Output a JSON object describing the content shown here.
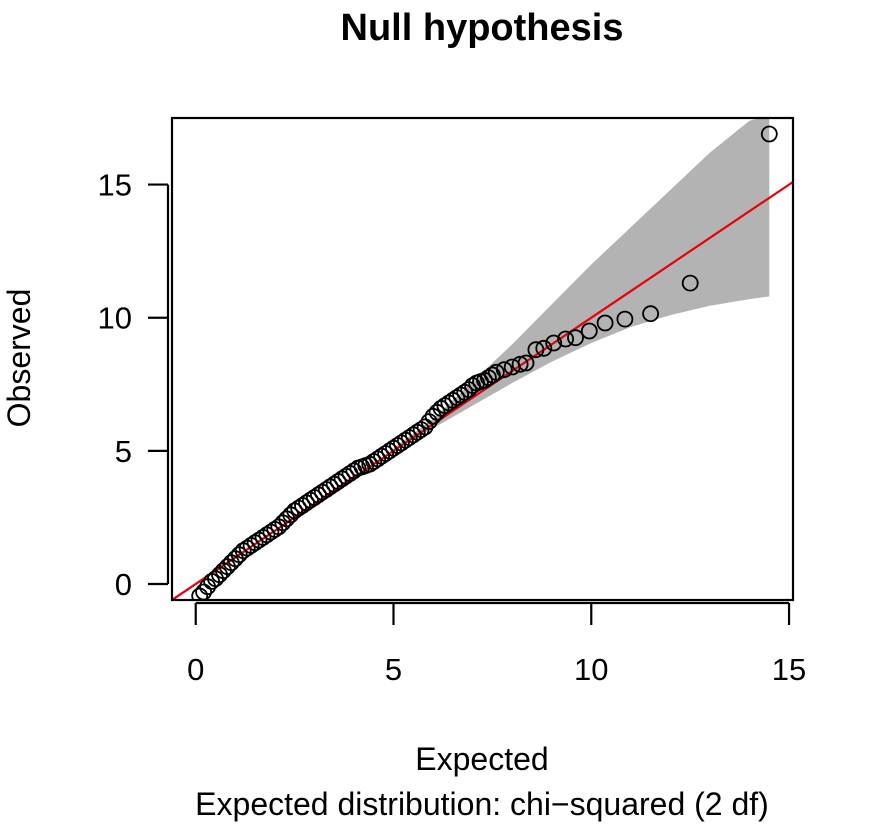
{
  "chart_data": {
    "type": "scatter",
    "title": "Null hypothesis",
    "xlabel": "Expected",
    "ylabel": "Observed",
    "subtitle": "Expected distribution: chi−squared (2 df)",
    "xlim": [
      -0.6,
      15.1
    ],
    "ylim": [
      -0.6,
      17.5
    ],
    "x_ticks": [
      0,
      5,
      10,
      15
    ],
    "y_ticks": [
      0,
      5,
      10,
      15
    ],
    "grid": false,
    "legend": "none",
    "reference_line": {
      "intercept": 0,
      "slope": 1,
      "color": "#e8000b"
    },
    "confidence_band": {
      "color": "#b3b3b3",
      "x": [
        5.0,
        6.0,
        7.0,
        8.0,
        9.0,
        10.0,
        11.0,
        12.0,
        13.0,
        14.0,
        14.5
      ],
      "lower": [
        5.0,
        5.85,
        6.7,
        7.55,
        8.35,
        9.05,
        9.65,
        10.1,
        10.45,
        10.7,
        10.8
      ],
      "upper": [
        5.1,
        6.2,
        7.6,
        9.0,
        10.5,
        12.0,
        13.4,
        14.8,
        16.2,
        17.4,
        17.6
      ]
    },
    "points_x": [
      0.1,
      0.2,
      0.3,
      0.4,
      0.5,
      0.6,
      0.7,
      0.8,
      0.9,
      1.0,
      1.1,
      1.2,
      1.3,
      1.4,
      1.5,
      1.6,
      1.7,
      1.8,
      1.9,
      2.0,
      2.1,
      2.2,
      2.3,
      2.4,
      2.5,
      2.6,
      2.7,
      2.8,
      2.9,
      3.0,
      3.1,
      3.2,
      3.3,
      3.4,
      3.5,
      3.6,
      3.7,
      3.8,
      3.9,
      4.0,
      4.1,
      4.2,
      4.3,
      4.4,
      4.5,
      4.6,
      4.7,
      4.8,
      4.9,
      5.0,
      5.1,
      5.2,
      5.3,
      5.4,
      5.5,
      5.6,
      5.7,
      5.8,
      5.9,
      6.0,
      6.1,
      6.2,
      6.3,
      6.4,
      6.5,
      6.6,
      6.7,
      6.8,
      6.9,
      7.0,
      7.1,
      7.2,
      7.3,
      7.4,
      7.5,
      7.6,
      7.8,
      8.0,
      8.2,
      8.35,
      8.6,
      8.8,
      9.05,
      9.35,
      9.6,
      9.95,
      10.35,
      10.85,
      11.5,
      12.5,
      14.5
    ],
    "points_y": [
      -0.45,
      -0.3,
      -0.1,
      0.1,
      0.2,
      0.35,
      0.5,
      0.65,
      0.8,
      0.95,
      1.1,
      1.25,
      1.35,
      1.45,
      1.55,
      1.65,
      1.75,
      1.85,
      1.95,
      2.05,
      2.15,
      2.3,
      2.45,
      2.6,
      2.75,
      2.85,
      2.95,
      3.05,
      3.15,
      3.25,
      3.35,
      3.45,
      3.55,
      3.65,
      3.75,
      3.85,
      3.95,
      4.05,
      4.15,
      4.25,
      4.35,
      4.4,
      4.45,
      4.5,
      4.6,
      4.7,
      4.8,
      4.9,
      5.0,
      5.1,
      5.2,
      5.3,
      5.4,
      5.5,
      5.6,
      5.7,
      5.8,
      5.9,
      6.1,
      6.3,
      6.45,
      6.6,
      6.7,
      6.8,
      6.9,
      7.0,
      7.1,
      7.2,
      7.3,
      7.45,
      7.55,
      7.6,
      7.65,
      7.75,
      7.85,
      7.95,
      8.05,
      8.15,
      8.25,
      8.3,
      8.8,
      8.85,
      9.05,
      9.2,
      9.25,
      9.5,
      9.8,
      9.95,
      10.15,
      11.3,
      16.9
    ]
  }
}
